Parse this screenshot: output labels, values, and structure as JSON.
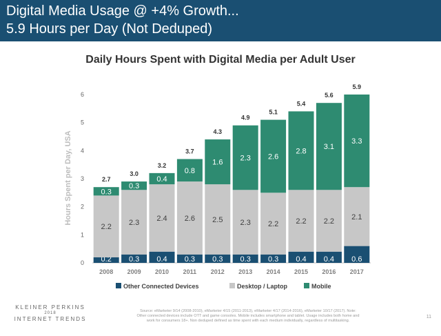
{
  "header": {
    "title_line1": "Digital Media Usage @ +4% Growth...",
    "title_line2": "5.9 Hours per Day (Not Deduped)",
    "background_color": "#1a4f72"
  },
  "chart_data": {
    "type": "bar",
    "stacked": true,
    "title": "Daily Hours Spent with Digital Media per Adult User",
    "ylabel": "Hours Spent per Day, USA",
    "xlabel": "",
    "ylim": [
      0,
      6
    ],
    "yticks": [
      "0",
      "1",
      "2",
      "3",
      "4",
      "5",
      "6"
    ],
    "grid": false,
    "legend_position": "bottom",
    "categories": [
      "2008",
      "2009",
      "2010",
      "2011",
      "2012",
      "2013",
      "2014",
      "2015",
      "2016",
      "2017"
    ],
    "series": [
      {
        "name": "Other Connected Devices",
        "color": "#1a4f72",
        "values": [
          0.2,
          0.3,
          0.4,
          0.3,
          0.3,
          0.3,
          0.3,
          0.4,
          0.4,
          0.6
        ],
        "labels": [
          "0.2",
          "0.3",
          "0.4",
          "0.3",
          "0.3",
          "0.3",
          "0.3",
          "0.4",
          "0.4",
          "0.6"
        ]
      },
      {
        "name": "Desktop / Laptop",
        "color": "#c7c7c7",
        "values": [
          2.2,
          2.3,
          2.4,
          2.6,
          2.5,
          2.3,
          2.2,
          2.2,
          2.2,
          2.1
        ],
        "labels": [
          "2.2",
          "2.3",
          "2.4",
          "2.6",
          "2.5",
          "2.3",
          "2.2",
          "2.2",
          "2.2",
          "2.1"
        ]
      },
      {
        "name": "Mobile",
        "color": "#2e8b71",
        "values": [
          0.3,
          0.3,
          0.4,
          0.8,
          1.6,
          2.3,
          2.6,
          2.8,
          3.1,
          3.3
        ],
        "labels": [
          "0.3",
          "0.3",
          "0.4",
          "0.8",
          "1.6",
          "2.3",
          "2.6",
          "2.8",
          "3.1",
          "3.3"
        ]
      }
    ],
    "totals": [
      "2.7",
      "3.0",
      "3.2",
      "3.7",
      "4.3",
      "4.9",
      "5.1",
      "5.4",
      "5.6",
      "5.9"
    ]
  },
  "footer": {
    "logo_firm": "KLEINER PERKINS",
    "logo_year": "2018",
    "logo_event": "INTERNET TRENDS",
    "source_line1": "Source: eMarketer 9/14 (2008-2010), eMarketer 4/15 (2011-2013), eMarketer 4/17 (2014-2016), eMarketer 10/17 (2017). Note:",
    "source_line2": "Other connected devices include OTT and game consoles. Mobile includes smartphone and tablet. Usage includes both home and",
    "source_line3": "work for consumers 18+. Non deduped defined as time spent with each medium individually, regardless of multitasking.",
    "page_number": "11"
  }
}
